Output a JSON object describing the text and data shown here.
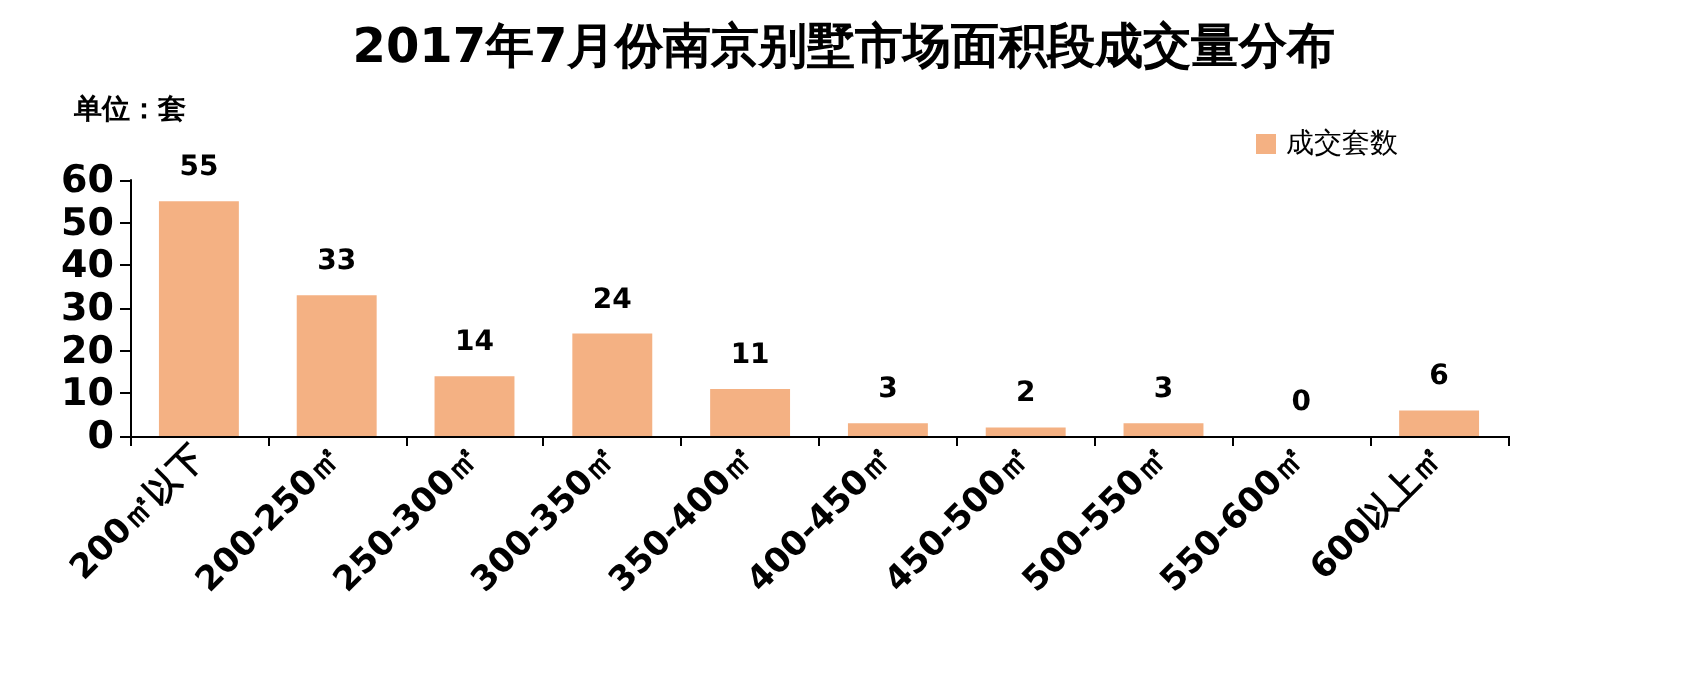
{
  "chart_data": {
    "type": "bar",
    "title": "2017年7月份南京别墅市场面积段成交量分布",
    "ylabel": "单位：套",
    "categories": [
      "200㎡以下",
      "200-250㎡",
      "250-300㎡",
      "300-350㎡",
      "350-400㎡",
      "400-450㎡",
      "450-500㎡",
      "500-550㎡",
      "550-600㎡",
      "600以上㎡"
    ],
    "series": [
      {
        "name": "成交套数",
        "color": "#f4b183",
        "values": [
          55,
          33,
          14,
          24,
          11,
          3,
          2,
          3,
          0,
          6
        ]
      }
    ],
    "ylim": [
      0,
      60
    ],
    "yticks": [
      0,
      10,
      20,
      30,
      40,
      50,
      60
    ],
    "grid": false,
    "legend": "top right",
    "data_labels": true
  }
}
